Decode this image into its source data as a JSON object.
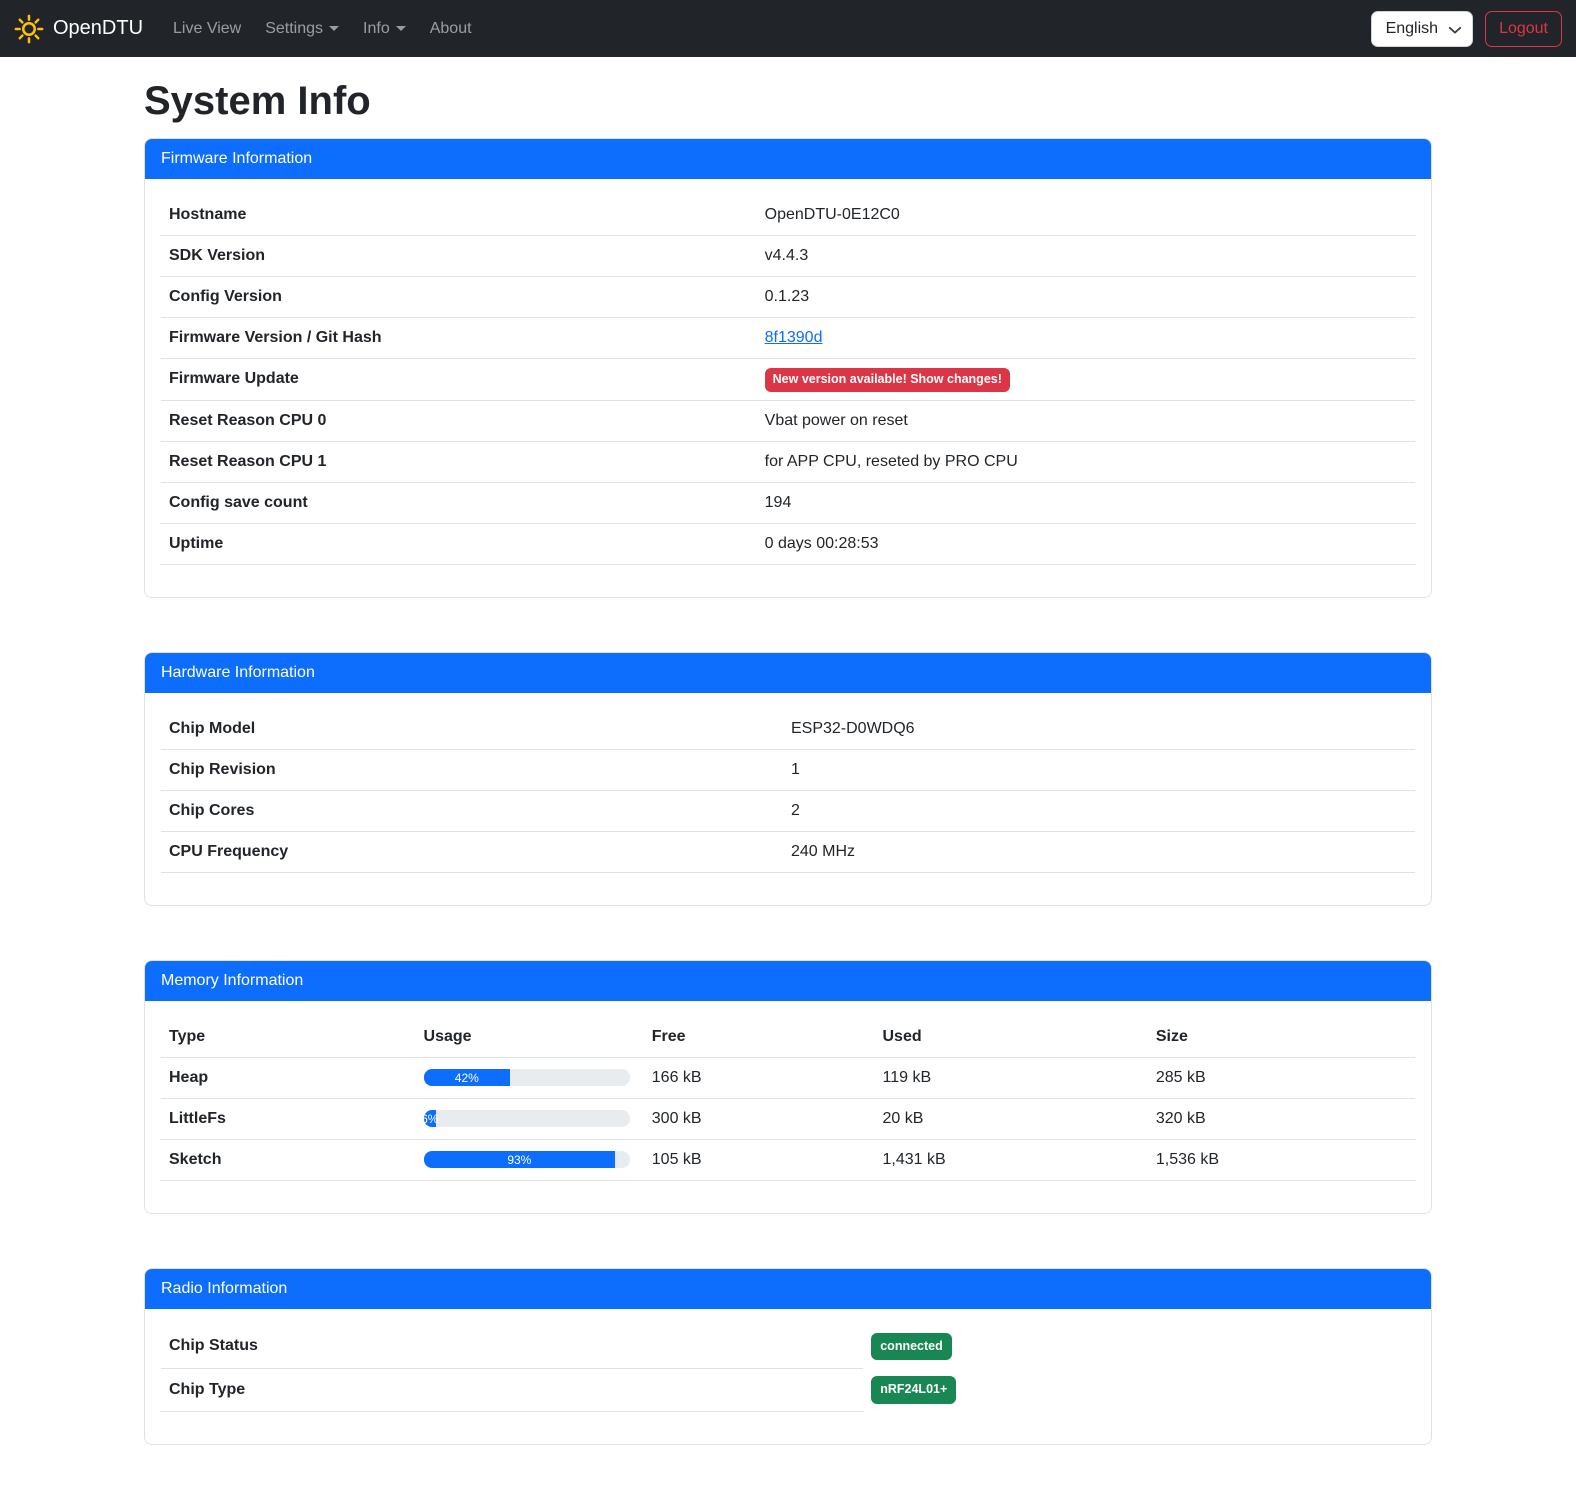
{
  "navbar": {
    "brand": "OpenDTU",
    "items": [
      {
        "label": "Live View",
        "dropdown": false
      },
      {
        "label": "Settings",
        "dropdown": true
      },
      {
        "label": "Info",
        "dropdown": true
      },
      {
        "label": "About",
        "dropdown": false
      }
    ],
    "language_selector": {
      "value": "English"
    },
    "logout_label": "Logout"
  },
  "page": {
    "title": "System Info"
  },
  "colors": {
    "primary": "#0d6efd",
    "danger": "#dc3545",
    "success": "#198754",
    "navbar_bg": "#212529",
    "logo": "#ffc107"
  },
  "firmware_card": {
    "title": "Firmware Information",
    "rows": [
      {
        "label": "Hostname",
        "type": "text",
        "value": "OpenDTU-0E12C0"
      },
      {
        "label": "SDK Version",
        "type": "text",
        "value": "v4.4.3"
      },
      {
        "label": "Config Version",
        "type": "text",
        "value": "0.1.23"
      },
      {
        "label": "Firmware Version / Git Hash",
        "type": "link",
        "value": "8f1390d"
      },
      {
        "label": "Firmware Update",
        "type": "badge-danger",
        "value": "New version available! Show changes!"
      },
      {
        "label": "Reset Reason CPU 0",
        "type": "text",
        "value": "Vbat power on reset"
      },
      {
        "label": "Reset Reason CPU 1",
        "type": "text",
        "value": "for APP CPU, reseted by PRO CPU"
      },
      {
        "label": "Config save count",
        "type": "text",
        "value": "194"
      },
      {
        "label": "Uptime",
        "type": "text",
        "value": "0 days 00:28:53"
      }
    ]
  },
  "hardware_card": {
    "title": "Hardware Information",
    "rows": [
      {
        "label": "Chip Model",
        "type": "text",
        "value": "ESP32-D0WDQ6"
      },
      {
        "label": "Chip Revision",
        "type": "text",
        "value": "1"
      },
      {
        "label": "Chip Cores",
        "type": "text",
        "value": "2"
      },
      {
        "label": "CPU Frequency",
        "type": "text",
        "value": "240 MHz"
      }
    ]
  },
  "memory_card": {
    "title": "Memory Information",
    "columns": [
      "Type",
      "Usage",
      "Free",
      "Used",
      "Size"
    ],
    "rows": [
      {
        "type": "Heap",
        "usage_pct": 42,
        "usage_label": "42%",
        "free": "166 kB",
        "used": "119 kB",
        "size": "285 kB"
      },
      {
        "type": "LittleFs",
        "usage_pct": 6,
        "usage_label": "6%",
        "free": "300 kB",
        "used": "20 kB",
        "size": "320 kB"
      },
      {
        "type": "Sketch",
        "usage_pct": 93,
        "usage_label": "93%",
        "free": "105 kB",
        "used": "1,431 kB",
        "size": "1,536 kB"
      }
    ]
  },
  "radio_card": {
    "title": "Radio Information",
    "rows": [
      {
        "label": "Chip Status",
        "badge": "connected"
      },
      {
        "label": "Chip Type",
        "badge": "nRF24L01+"
      }
    ]
  }
}
